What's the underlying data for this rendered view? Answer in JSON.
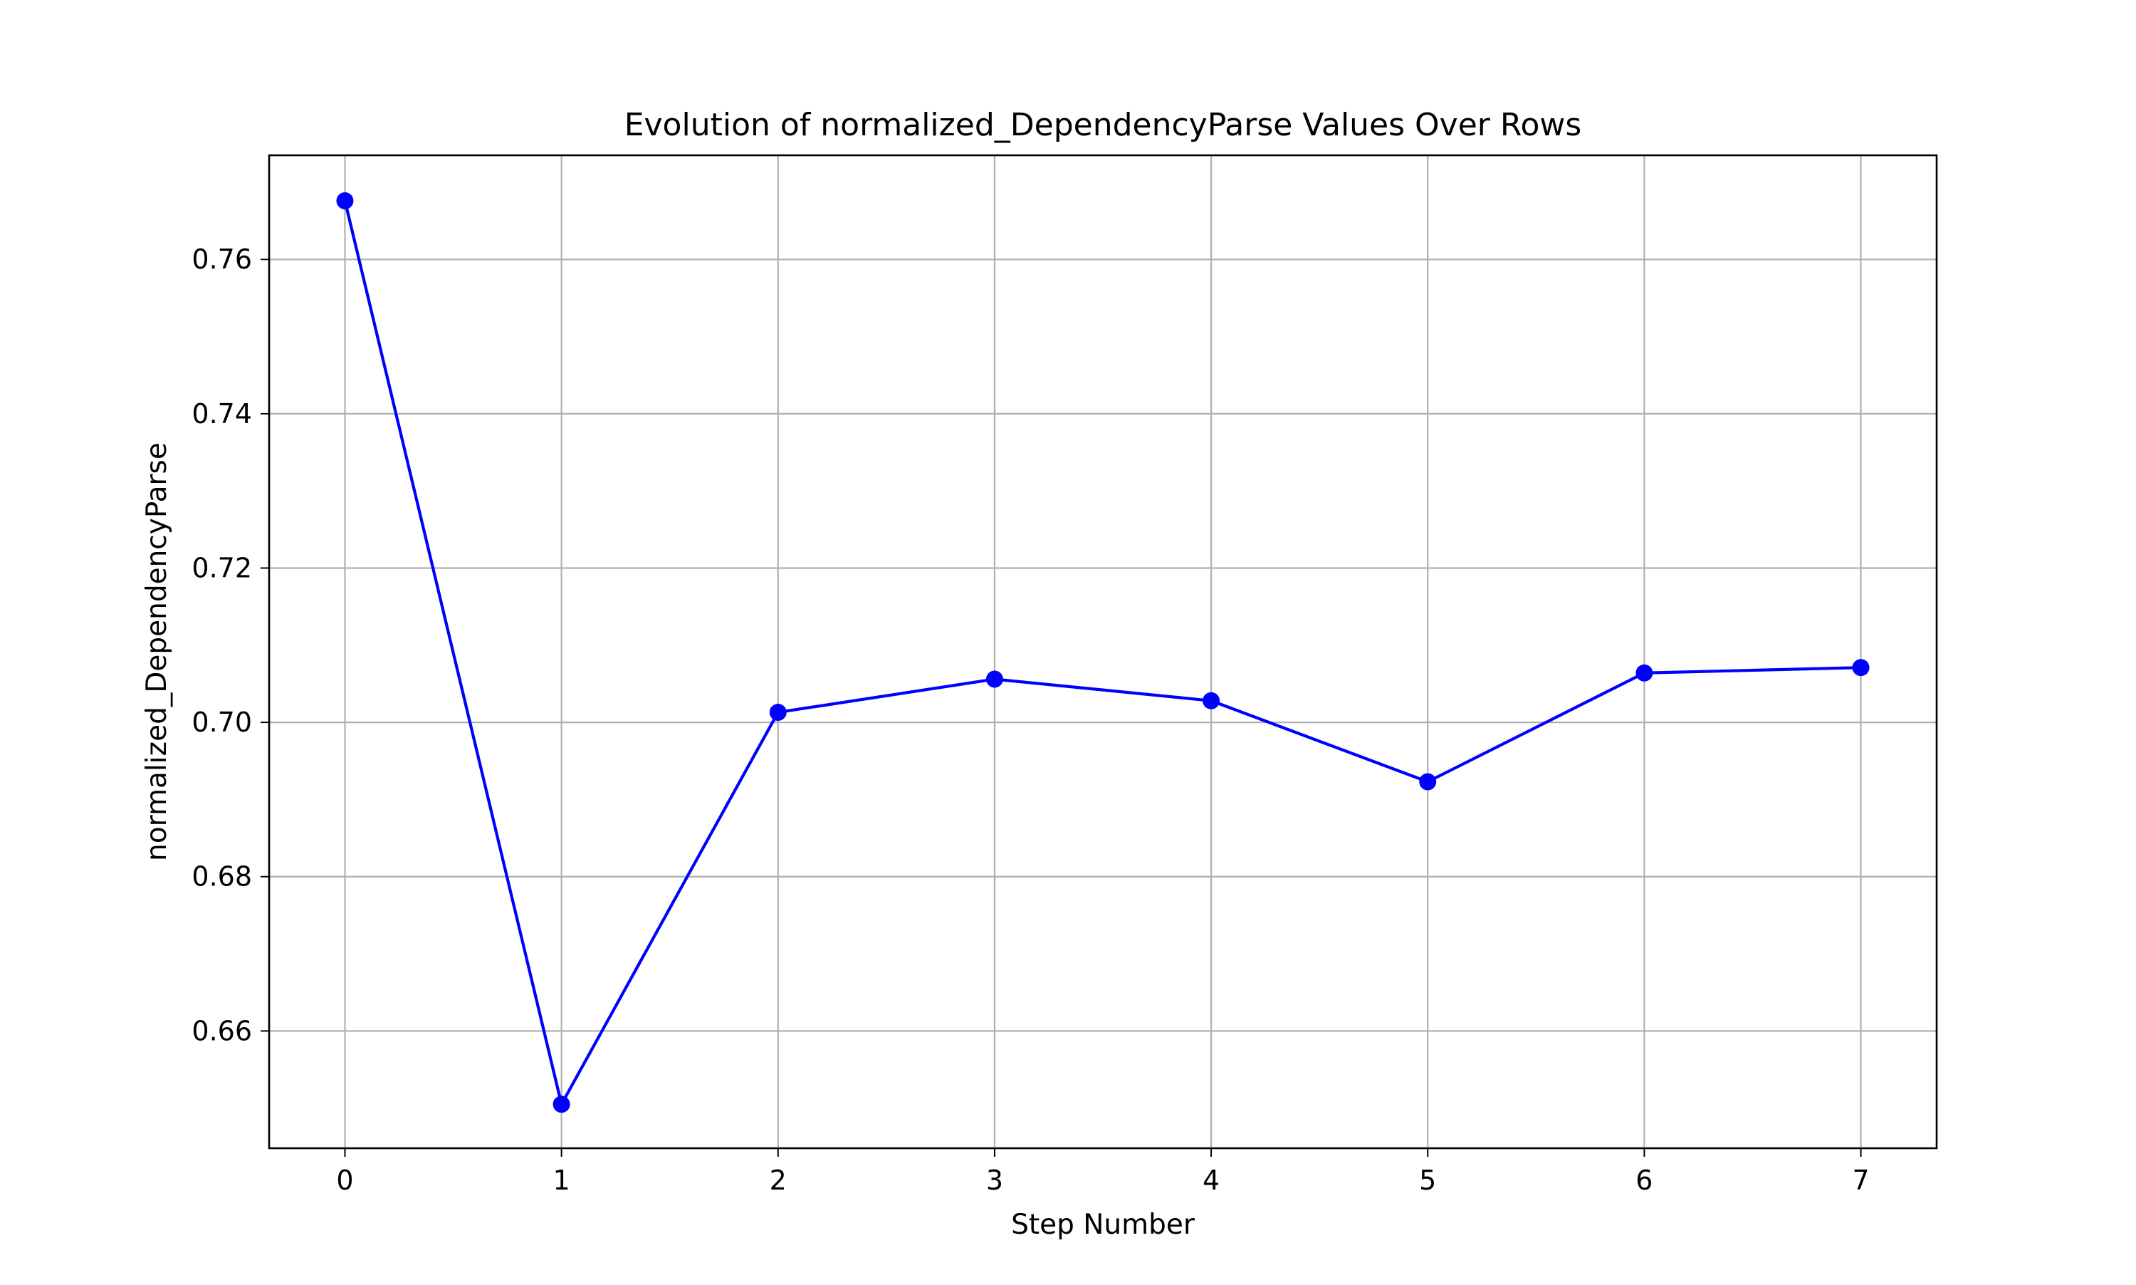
{
  "chart_data": {
    "type": "line",
    "title": "Evolution of normalized_DependencyParse Values Over Rows",
    "xlabel": "Step Number",
    "ylabel": "normalized_DependencyParse",
    "x": [
      0,
      1,
      2,
      3,
      4,
      5,
      6,
      7
    ],
    "series": [
      {
        "values": [
          0.7676,
          0.6505,
          0.7013,
          0.7056,
          0.7028,
          0.6923,
          0.7064,
          0.7071
        ],
        "color": "#0000ff",
        "marker": "circle"
      }
    ],
    "xlim": [
      -0.35,
      7.35
    ],
    "ylim": [
      0.6448,
      0.7735
    ],
    "xticks": [
      0,
      1,
      2,
      3,
      4,
      5,
      6,
      7
    ],
    "yticks": [
      0.66,
      0.68,
      0.7,
      0.72,
      0.74,
      0.76
    ],
    "ytick_labels": [
      "0.66",
      "0.68",
      "0.70",
      "0.72",
      "0.74",
      "0.76"
    ],
    "grid": true,
    "legend": false
  }
}
